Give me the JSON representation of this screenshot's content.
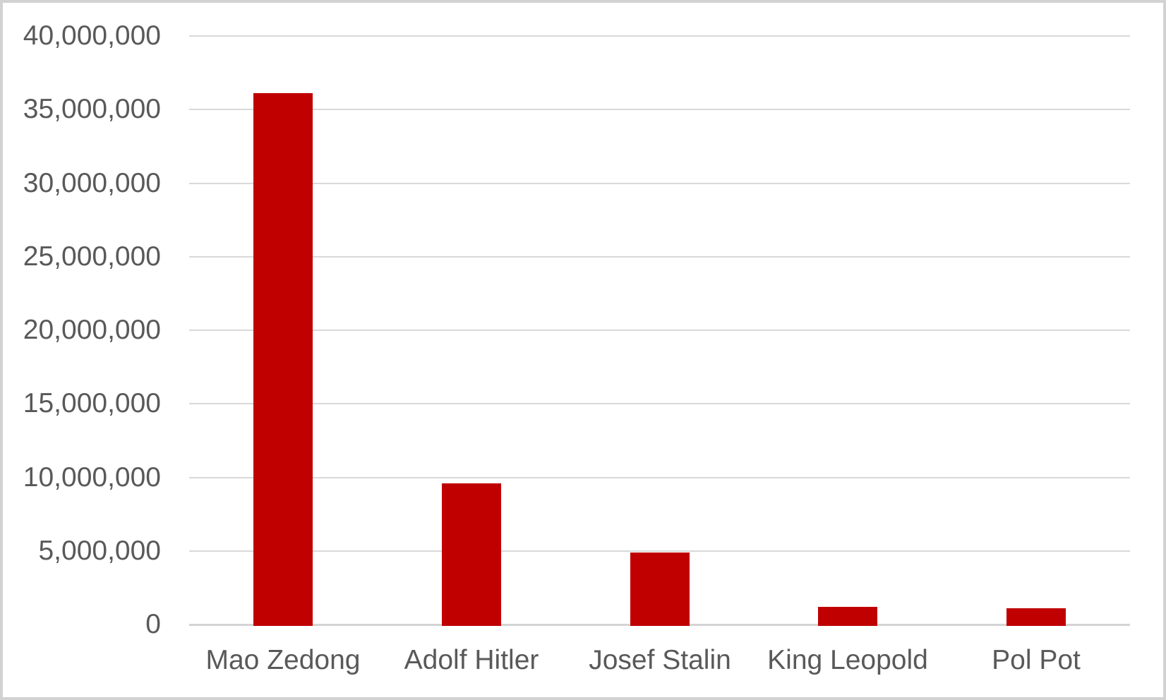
{
  "chart_data": {
    "type": "bar",
    "title": "",
    "xlabel": "",
    "ylabel": "",
    "categories": [
      "Mao Zedong",
      "Adolf Hitler",
      "Josef Stalin",
      "King Leopold",
      "Pol Pot"
    ],
    "values": [
      36200000,
      9700000,
      5000000,
      1300000,
      1200000
    ],
    "ylim": [
      0,
      40000000
    ],
    "ytick_step": 5000000,
    "ytick_labels": [
      "0",
      "5,000,000",
      "10,000,000",
      "15,000,000",
      "20,000,000",
      "25,000,000",
      "30,000,000",
      "35,000,000",
      "40,000,000"
    ],
    "grid": true,
    "legend": false,
    "legend_position": "none",
    "colors": {
      "bar": "#c00000",
      "gridline": "#d9d9d9",
      "baseline": "#d4d4d4",
      "axis_labels": "#595959",
      "background": "#ffffff",
      "frame_border": "#d2d2d2"
    }
  }
}
